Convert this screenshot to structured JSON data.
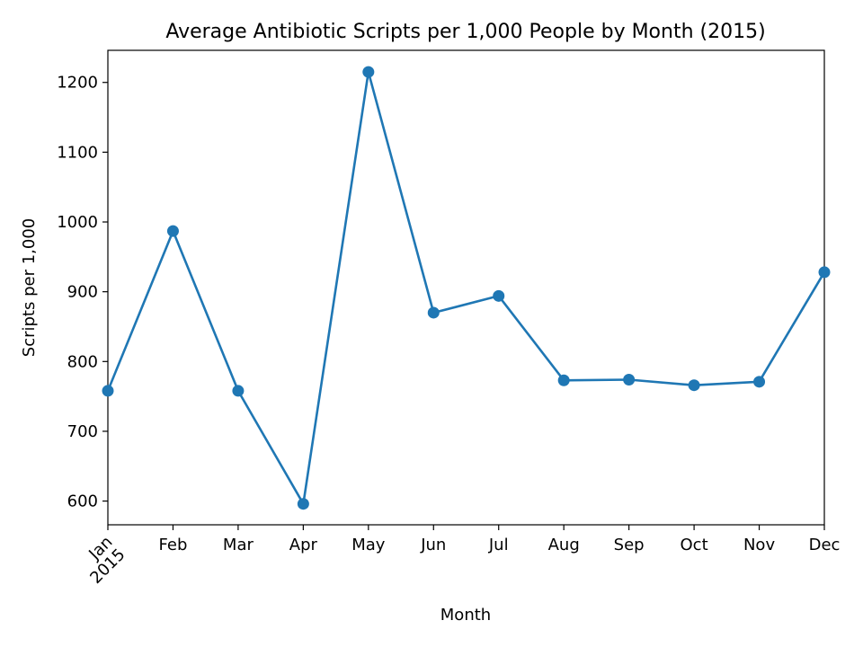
{
  "chart_data": {
    "type": "line",
    "title": "Average Antibiotic Scripts per 1,000 People by Month (2015)",
    "xlabel": "Month",
    "ylabel": "Scripts per 1,000",
    "categories": [
      "Jan",
      "Feb",
      "Mar",
      "Apr",
      "May",
      "Jun",
      "Jul",
      "Aug",
      "Sep",
      "Oct",
      "Nov",
      "Dec"
    ],
    "first_tick_year": "2015",
    "series": [
      {
        "values": [
          758,
          987,
          758,
          596,
          1215,
          870,
          894,
          773,
          774,
          766,
          771,
          928
        ],
        "color": "#1f77b4",
        "marker": "circle"
      }
    ],
    "yticks": [
      600,
      700,
      800,
      900,
      1000,
      1100,
      1200
    ],
    "ylim": [
      566,
      1246
    ],
    "grid": false,
    "legend": "none"
  }
}
